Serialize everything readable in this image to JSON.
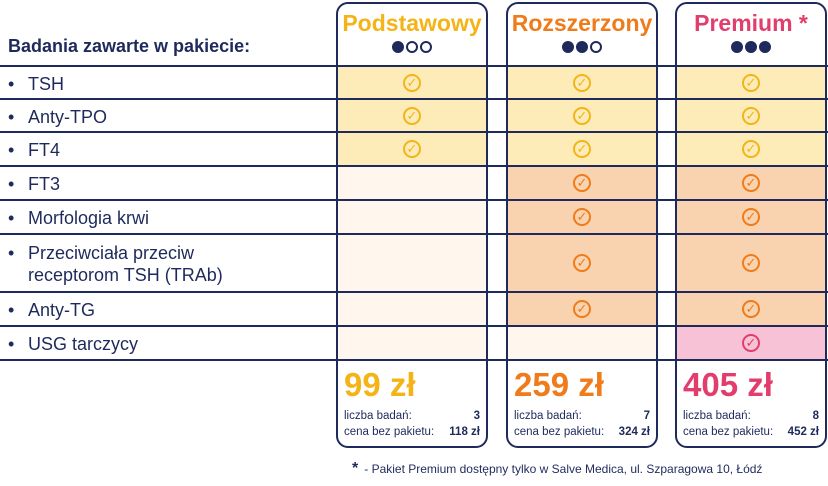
{
  "header": {
    "label": "Badania zawarte w pakiecie:"
  },
  "rows": [
    {
      "label": "TSH"
    },
    {
      "label": "Anty-TPO"
    },
    {
      "label": "FT4"
    },
    {
      "label": "FT3"
    },
    {
      "label": "Morfologia krwi"
    },
    {
      "label": "Przeciwciała przeciw\nreceptorom TSH (TRAb)"
    },
    {
      "label": "Anty-TG"
    },
    {
      "label": "USG tarczycy"
    }
  ],
  "packages": [
    {
      "title": "Podstawowy",
      "color": "#f4b417",
      "dots_filled": 1,
      "price": "99 zł",
      "count_label": "liczba badań:",
      "count_value": "3",
      "cost_label": "cena bez pakietu:",
      "cost_value": "118 zł",
      "included": [
        true,
        true,
        true,
        false,
        false,
        false,
        false,
        false
      ]
    },
    {
      "title": "Rozszerzony",
      "color": "#ef7b1a",
      "dots_filled": 2,
      "price": "259 zł",
      "count_label": "liczba badań:",
      "count_value": "7",
      "cost_label": "cena bez pakietu:",
      "cost_value": "324 zł",
      "included": [
        true,
        true,
        true,
        true,
        true,
        true,
        true,
        false
      ]
    },
    {
      "title": "Premium *",
      "color": "#e23d6d",
      "dots_filled": 3,
      "price": "405 zł",
      "count_label": "liczba badań:",
      "count_value": "8",
      "cost_label": "cena bez pakietu:",
      "cost_value": "452 zł",
      "included": [
        true,
        true,
        true,
        true,
        true,
        true,
        true,
        true
      ]
    }
  ],
  "footnote": {
    "star": "*",
    "text": "- Pakiet Premium dostępny tylko w Salve Medica, ul. Szparagowa 10, Łódź"
  },
  "colors": {
    "navy": "#1f2a5c",
    "basic_bg": "#fdebb8",
    "extended_bg": "#f9d3b0",
    "premium_pink_bg": "#f7c2d6",
    "empty_bg": "#fff7ee",
    "check_yellow": "#f4b417",
    "check_orange": "#ef7b1a",
    "check_pink": "#e23d6d"
  }
}
